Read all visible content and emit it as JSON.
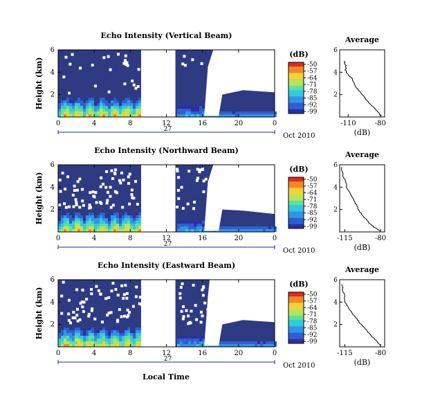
{
  "figure": {
    "xlabel": "Local Time",
    "date_suffix": "Oct 2010",
    "day_label": "27"
  },
  "colors": {
    "background_dark": "#2e3a82",
    "colormap": [
      "#2d2fa0",
      "#2f5fd0",
      "#2f95e8",
      "#35c9d8",
      "#5fe0a0",
      "#b8e35a",
      "#f2d23a",
      "#f08a28",
      "#e02a1a"
    ]
  },
  "chart_data": [
    {
      "type": "heatmap",
      "title": "Echo Intensity (Vertical Beam)",
      "ylabel": "Height (km)",
      "xticks": [
        "0",
        "4",
        "8",
        "12",
        "16",
        "20",
        "0"
      ],
      "yticks": [
        "2",
        "4",
        "6"
      ],
      "xlim_hours": [
        0,
        24
      ],
      "ylim_km": [
        0,
        6
      ],
      "no_data_intervals_hours": [
        [
          9.2,
          13
        ]
      ],
      "colorbar": {
        "label": "(dB)",
        "ticks": [
          "-50",
          "-57",
          "-64",
          "-71",
          "-78",
          "-85",
          "-92",
          "-99"
        ]
      },
      "profile": {
        "title": "Average",
        "xlabel": "(dB)",
        "xticks": [
          "-110",
          "-80"
        ],
        "yticks": [
          "2",
          "4",
          "6"
        ],
        "xlim": [
          -118,
          -76
        ],
        "points": [
          [
            -114,
            5.0
          ],
          [
            -112,
            4.6
          ],
          [
            -113,
            4.2
          ],
          [
            -110,
            3.8
          ],
          [
            -106,
            3.4
          ],
          [
            -104,
            2.9
          ],
          [
            -101,
            2.5
          ],
          [
            -97,
            2.0
          ],
          [
            -93,
            1.5
          ],
          [
            -88,
            1.0
          ],
          [
            -84,
            0.6
          ],
          [
            -81,
            0.3
          ],
          [
            -79,
            0.1
          ]
        ]
      }
    },
    {
      "type": "heatmap",
      "title": "Echo Intensity (Northward Beam)",
      "ylabel": "Height (km)",
      "xticks": [
        "0",
        "4",
        "8",
        "12",
        "16",
        "20",
        "0"
      ],
      "yticks": [
        "2",
        "4",
        "6"
      ],
      "xlim_hours": [
        0,
        24
      ],
      "ylim_km": [
        0,
        6
      ],
      "no_data_intervals_hours": [
        [
          9.2,
          13
        ]
      ],
      "colorbar": {
        "label": "(dB)",
        "ticks": [
          "-50",
          "-57",
          "-64",
          "-71",
          "-78",
          "-85",
          "-92",
          "-99"
        ]
      },
      "profile": {
        "title": "Average",
        "xlabel": "(dB)",
        "xticks": [
          "-115",
          "-80"
        ],
        "yticks": [
          "2",
          "4",
          "6"
        ],
        "xlim": [
          -120,
          -76
        ],
        "points": [
          [
            -118,
            5.8
          ],
          [
            -117,
            5.0
          ],
          [
            -114,
            4.4
          ],
          [
            -113,
            3.9
          ],
          [
            -109,
            3.3
          ],
          [
            -106,
            2.8
          ],
          [
            -103,
            2.3
          ],
          [
            -101,
            1.9
          ],
          [
            -97,
            1.4
          ],
          [
            -93,
            1.0
          ],
          [
            -89,
            0.6
          ],
          [
            -84,
            0.3
          ],
          [
            -80,
            0.1
          ]
        ]
      }
    },
    {
      "type": "heatmap",
      "title": "Echo Intensity (Eastward Beam)",
      "ylabel": "Height (km)",
      "xticks": [
        "0",
        "4",
        "8",
        "12",
        "16",
        "20",
        "0"
      ],
      "yticks": [
        "2",
        "4",
        "6"
      ],
      "xlim_hours": [
        0,
        24
      ],
      "ylim_km": [
        0,
        6
      ],
      "no_data_intervals_hours": [
        [
          9.2,
          13
        ]
      ],
      "colorbar": {
        "label": "(dB)",
        "ticks": [
          "-50",
          "-57",
          "-64",
          "-71",
          "-78",
          "-85",
          "-92",
          "-99"
        ]
      },
      "profile": {
        "title": "Average",
        "xlabel": "(dB)",
        "xticks": [
          "-115",
          "-80"
        ],
        "yticks": [
          "2",
          "4",
          "6"
        ],
        "xlim": [
          -120,
          -76
        ],
        "points": [
          [
            -118,
            5.6
          ],
          [
            -117,
            5.0
          ],
          [
            -115,
            4.5
          ],
          [
            -115,
            4.0
          ],
          [
            -111,
            3.4
          ],
          [
            -107,
            2.9
          ],
          [
            -103,
            2.5
          ],
          [
            -100,
            2.1
          ],
          [
            -95,
            1.6
          ],
          [
            -90,
            1.1
          ],
          [
            -86,
            0.7
          ],
          [
            -82,
            0.3
          ],
          [
            -80,
            0.1
          ]
        ]
      }
    }
  ]
}
